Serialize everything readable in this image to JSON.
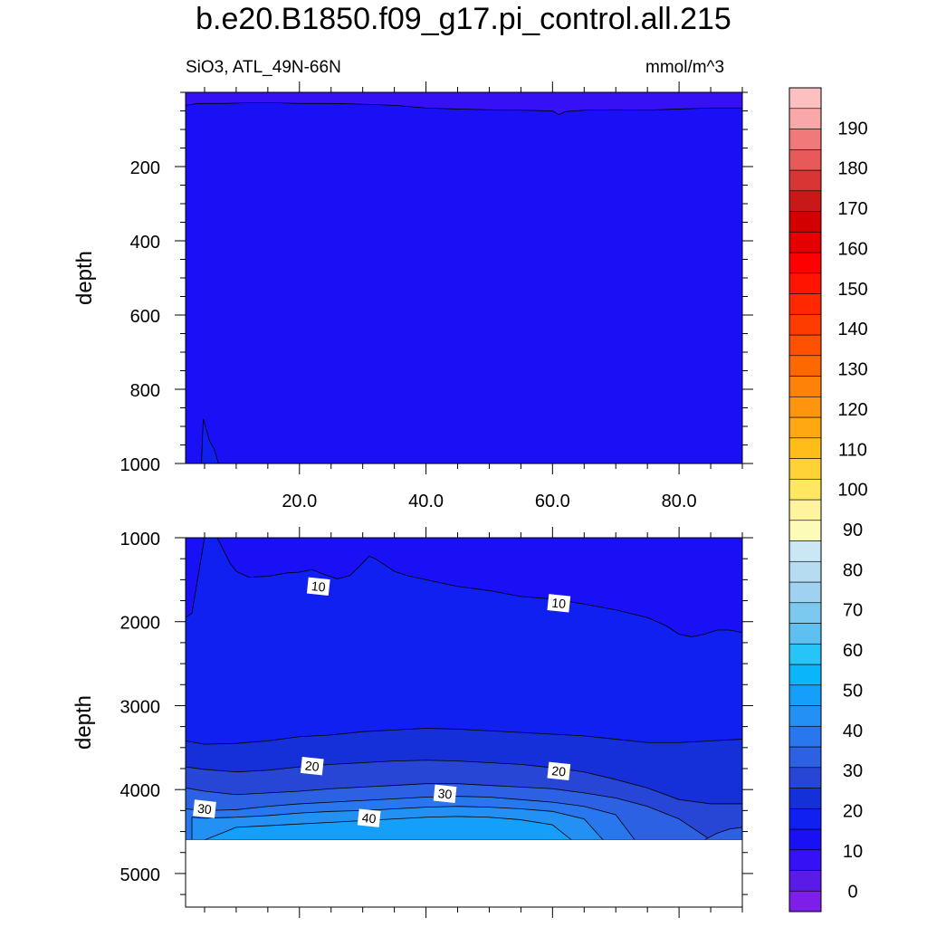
{
  "chart_data": {
    "type": "heatmap",
    "title": "b.e20.B1850.f09_g17.pi_control.all.215",
    "subtitle_left": "SiO3, ATL_49N-66N",
    "subtitle_right": "mmol/m^3",
    "xlim": [
      2,
      90
    ],
    "colorbar": {
      "levels": [
        -10,
        -5,
        0,
        5,
        10,
        15,
        20,
        25,
        30,
        35,
        40,
        45,
        50,
        55,
        60,
        65,
        70,
        75,
        80,
        85,
        90,
        95,
        100,
        105,
        110,
        115,
        120,
        125,
        130,
        135,
        140,
        145,
        150,
        155,
        160,
        165,
        170,
        175,
        180,
        185,
        190,
        195,
        200
      ],
      "tick_labels": [
        "0",
        "10",
        "20",
        "30",
        "40",
        "50",
        "60",
        "70",
        "80",
        "90",
        "100",
        "110",
        "120",
        "130",
        "140",
        "150",
        "160",
        "170",
        "180",
        "190"
      ],
      "colors": [
        "#7d1fe8",
        "#5a1be8",
        "#3711f5",
        "#1a10f6",
        "#1020f0",
        "#1530d8",
        "#2846d6",
        "#2c61e4",
        "#2877ee",
        "#2390f3",
        "#14a0fa",
        "#0ab5fa",
        "#27c4f8",
        "#5ec0f0",
        "#7dc8ee",
        "#9ed2f0",
        "#b6dcf2",
        "#cbe6f5",
        "#fcfcb8",
        "#fff3a0",
        "#ffe860",
        "#ffd235",
        "#ffbd1a",
        "#ffa812",
        "#ff950f",
        "#ff8208",
        "#ff6800",
        "#ff5100",
        "#ff3c00",
        "#ff2800",
        "#ff1400",
        "#ff0000",
        "#e40000",
        "#d30000",
        "#c81818",
        "#d93535",
        "#e85a5a",
        "#f07a7a",
        "#f8a8a8",
        "#fcc0c0"
      ]
    },
    "panels": [
      {
        "name": "upper",
        "ylabel": "depth",
        "ylim": [
          0,
          1000
        ],
        "yticks": [
          200,
          400,
          600,
          800,
          1000
        ],
        "xticks": [
          20,
          40,
          60,
          80
        ],
        "xtick_labels": [
          "20.0",
          "40.0",
          "60.0",
          "80.0"
        ],
        "background_value": 7,
        "contour_lines": [
          {
            "value": 5,
            "fill_above": 3,
            "x": [
              2,
              4,
              8,
              12,
              16,
              20,
              25,
              30,
              35,
              40,
              45,
              50,
              55,
              60,
              61,
              62,
              65,
              70,
              75,
              80,
              85,
              90
            ],
            "y": [
              35,
              30,
              30,
              28,
              28,
              30,
              30,
              32,
              35,
              42,
              45,
              47,
              48,
              50,
              60,
              52,
              48,
              47,
              48,
              45,
              42,
              42
            ]
          }
        ],
        "blobs": [
          {
            "value": 10,
            "x": [
              4.5,
              4.8,
              5.8,
              6.5,
              7.2,
              4.5
            ],
            "y": [
              1000,
              880,
              940,
              960,
              1000,
              1000
            ]
          }
        ]
      },
      {
        "name": "lower",
        "ylabel": "depth",
        "ylim": [
          1000,
          5400
        ],
        "yticks": [
          1000,
          2000,
          3000,
          4000,
          5000
        ],
        "background_value": 7,
        "fill_bands": [
          {
            "value": 12,
            "top_x": [
              2,
              3,
              5,
              7,
              9,
              10,
              12,
              15,
              18,
              20,
              22,
              24,
              26,
              28,
              30,
              31,
              32,
              33,
              34,
              35,
              37,
              40,
              45,
              50,
              55,
              60,
              65,
              70,
              75,
              78,
              80,
              82,
              84,
              86,
              88,
              90
            ],
            "top_y": [
              1950,
              1900,
              1000,
              1000,
              1300,
              1400,
              1470,
              1460,
              1420,
              1410,
              1380,
              1440,
              1490,
              1450,
              1300,
              1220,
              1250,
              1300,
              1350,
              1400,
              1450,
              1500,
              1580,
              1630,
              1700,
              1730,
              1790,
              1860,
              1950,
              2050,
              2150,
              2180,
              2150,
              2100,
              2100,
              2130
            ]
          },
          {
            "value": 17,
            "top_x": [
              2,
              5,
              10,
              15,
              20,
              25,
              30,
              35,
              40,
              45,
              50,
              55,
              60,
              65,
              70,
              75,
              80,
              85,
              90
            ],
            "top_y": [
              3420,
              3460,
              3450,
              3420,
              3370,
              3350,
              3310,
              3290,
              3270,
              3280,
              3300,
              3320,
              3340,
              3360,
              3400,
              3440,
              3440,
              3420,
              3400
            ]
          },
          {
            "value": 22,
            "top_x": [
              2,
              5,
              10,
              15,
              20,
              25,
              30,
              35,
              40,
              45,
              50,
              55,
              60,
              65,
              70,
              75,
              80,
              85,
              90
            ],
            "top_y": [
              3730,
              3760,
              3790,
              3770,
              3730,
              3700,
              3680,
              3660,
              3650,
              3660,
              3680,
              3700,
              3740,
              3790,
              3880,
              3980,
              4120,
              4170,
              4170
            ]
          },
          {
            "value": 27,
            "top_x": [
              2,
              5,
              10,
              15,
              20,
              25,
              30,
              35,
              40,
              45,
              50,
              55,
              60,
              65,
              70,
              75,
              80,
              85,
              90
            ],
            "top_y": [
              3980,
              4020,
              4060,
              4040,
              4020,
              3990,
              3970,
              3950,
              3930,
              3930,
              3950,
              3970,
              3990,
              4040,
              4100,
              4200,
              4350,
              4600,
              4600
            ]
          },
          {
            "value": 32,
            "top_x": [
              2,
              5,
              10,
              15,
              20,
              25,
              30,
              35,
              40,
              45,
              50,
              55,
              60,
              65,
              70,
              73
            ],
            "top_y": [
              4230,
              4250,
              4240,
              4200,
              4170,
              4150,
              4130,
              4110,
              4090,
              4080,
              4090,
              4120,
              4150,
              4200,
              4300,
              4600
            ]
          },
          {
            "value": 37,
            "top_x": [
              3,
              5,
              10,
              15,
              20,
              25,
              30,
              35,
              40,
              45,
              50,
              55,
              60,
              65,
              68
            ],
            "top_y": [
              4330,
              4340,
              4330,
              4310,
              4280,
              4260,
              4250,
              4230,
              4210,
              4200,
              4210,
              4230,
              4260,
              4350,
              4600
            ]
          },
          {
            "value": 42,
            "top_x": [
              5,
              10,
              15,
              20,
              25,
              30,
              35,
              40,
              45,
              50,
              55,
              60,
              63
            ],
            "top_y": [
              4600,
              4450,
              4430,
              4410,
              4390,
              4370,
              4350,
              4330,
              4320,
              4330,
              4360,
              4420,
              4600
            ]
          },
          {
            "value": 27,
            "top_x": [
              84,
              86,
              88,
              90
            ],
            "top_y": [
              4600,
              4520,
              4470,
              4450
            ]
          }
        ],
        "bottom_depth": 4600,
        "contour_labels": [
          {
            "text": "10",
            "x": 23,
            "y": 1580
          },
          {
            "text": "10",
            "x": 61,
            "y": 1780
          },
          {
            "text": "20",
            "x": 22,
            "y": 3720
          },
          {
            "text": "20",
            "x": 61,
            "y": 3780
          },
          {
            "text": "30",
            "x": 5,
            "y": 4230
          },
          {
            "text": "30",
            "x": 43,
            "y": 4050
          },
          {
            "text": "40",
            "x": 31,
            "y": 4340
          }
        ]
      }
    ]
  }
}
